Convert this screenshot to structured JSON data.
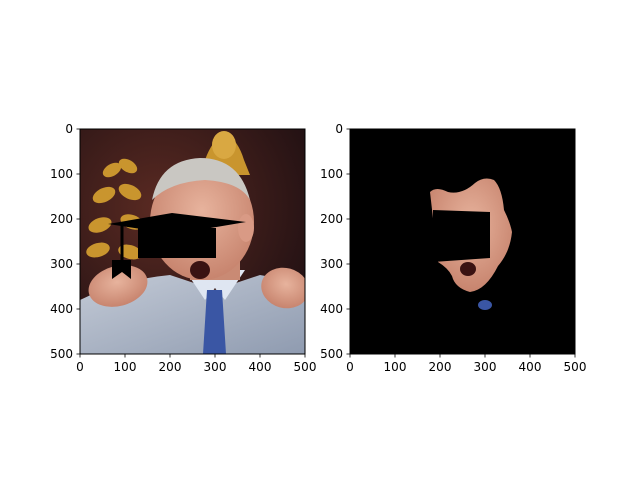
{
  "figure": {
    "background": "#ffffff"
  },
  "chart_data": [
    {
      "type": "image",
      "content": "photo of an older man in a grey suit and blue tie, mouth open, a black mortarboard cap shape drawn over his eyes and forehead, gold ornamentation on a dark background",
      "xlim": [
        0,
        500
      ],
      "ylim": [
        500,
        0
      ],
      "xticks": [
        0,
        100,
        200,
        300,
        400,
        500
      ],
      "yticks": [
        0,
        100,
        200,
        300,
        400,
        500
      ],
      "xlabel": "",
      "ylabel": "",
      "title": ""
    },
    {
      "type": "image",
      "content": "segmentation mask: only the skin (face and hands region) visible on black background, mortarboard shape masked out",
      "xlim": [
        0,
        500
      ],
      "ylim": [
        500,
        0
      ],
      "xticks": [
        0,
        100,
        200,
        300,
        400,
        500
      ],
      "yticks": [
        0,
        100,
        200,
        300,
        400,
        500
      ],
      "xlabel": "",
      "ylabel": "",
      "title": ""
    }
  ],
  "colors": {
    "mask_background": "#000000",
    "suit": "#a9b3c4",
    "tie": "#3a56a4",
    "hair": "#c9c7c2",
    "skin": "#d99a85",
    "backdrop": "#2a1416",
    "gold": "#c9952e"
  }
}
